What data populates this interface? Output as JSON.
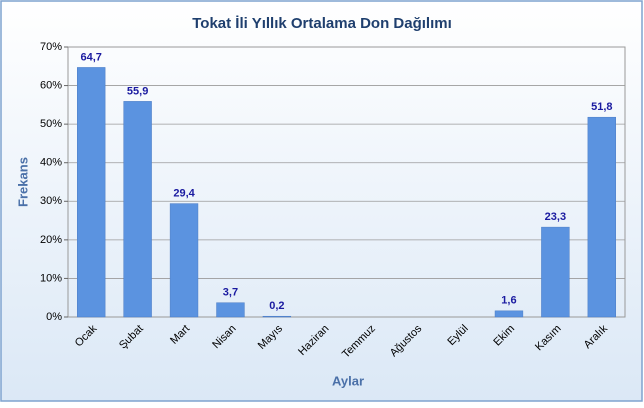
{
  "chart_data": {
    "type": "bar",
    "title": "Tokat İli Yıllık Ortalama Don Dağılımı",
    "x_label": "Aylar",
    "y_label": "Frekans",
    "categories": [
      "Ocak",
      "Şubat",
      "Mart",
      "Nisan",
      "Mayıs",
      "Haziran",
      "Temmuz",
      "Ağustos",
      "Eylül",
      "Ekim",
      "Kasım",
      "Aralık"
    ],
    "values": [
      64.7,
      55.9,
      29.4,
      3.7,
      0.2,
      0,
      0,
      0,
      0,
      1.6,
      23.3,
      51.8
    ],
    "value_labels": [
      "64,7",
      "55,9",
      "29,4",
      "3,7",
      "0,2",
      null,
      null,
      null,
      null,
      "1,6",
      "23,3",
      "51,8"
    ],
    "color": "#5b93e0",
    "ylim": [
      0,
      70
    ],
    "yticks": [
      {
        "value": 0,
        "label": "0%"
      },
      {
        "value": 10,
        "label": "10%"
      },
      {
        "value": 20,
        "label": "20%"
      },
      {
        "value": 30,
        "label": "30%"
      },
      {
        "value": 40,
        "label": "40%"
      },
      {
        "value": 50,
        "label": "50%"
      },
      {
        "value": 60,
        "label": "60%"
      },
      {
        "value": 70,
        "label": "70%"
      }
    ],
    "grid": true
  }
}
